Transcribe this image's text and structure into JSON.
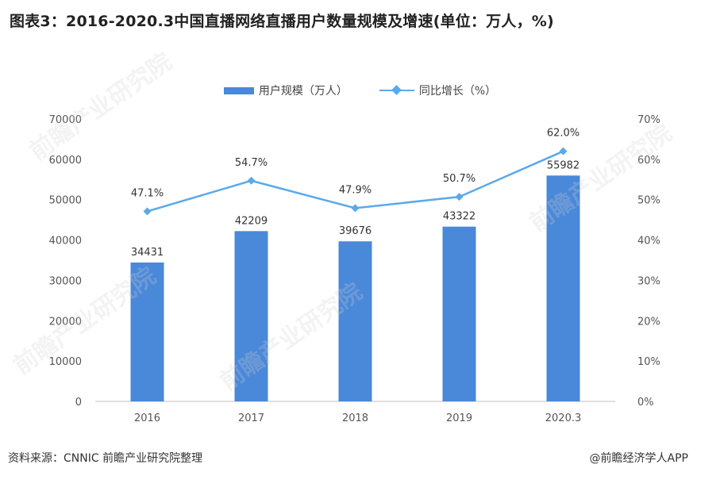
{
  "title": "图表3：2016-2020.3中国直播网络直播用户数量规模及增速(单位：万人，%)",
  "footer": {
    "source": "资料来源：CNNIC 前瞻产业研究院整理",
    "credit": "@前瞻经济学人APP"
  },
  "watermark": "前瞻产业研究院",
  "colors": {
    "bar": "#4a88d9",
    "line": "#5aa9ea"
  },
  "chart_data": {
    "type": "bar",
    "title": "图表3：2016-2020.3中国直播网络直播用户数量规模及增速(单位：万人，%)",
    "categories": [
      "2016",
      "2017",
      "2018",
      "2019",
      "2020.3"
    ],
    "series": [
      {
        "name": "用户规模（万人）",
        "type": "bar",
        "axis": "left",
        "values": [
          34431,
          42209,
          39676,
          43322,
          55982
        ]
      },
      {
        "name": "同比增长（%）",
        "type": "line",
        "axis": "right",
        "values": [
          47.1,
          54.7,
          47.9,
          50.7,
          62.0
        ]
      }
    ],
    "bar_labels": [
      "34431",
      "42209",
      "39676",
      "43322",
      "55982"
    ],
    "line_labels": [
      "47.1%",
      "54.7%",
      "47.9%",
      "50.7%",
      "62.0%"
    ],
    "y_left": {
      "ylim": [
        0,
        70000
      ],
      "ticks": [
        "0",
        "10000",
        "20000",
        "30000",
        "40000",
        "50000",
        "60000",
        "70000"
      ]
    },
    "y_right": {
      "ylim": [
        0,
        70
      ],
      "ticks": [
        "0%",
        "10%",
        "20%",
        "30%",
        "40%",
        "50%",
        "60%",
        "70%"
      ]
    },
    "legend": [
      "用户规模（万人）",
      "同比增长（%）"
    ],
    "legend_position": "top",
    "grid": false
  }
}
